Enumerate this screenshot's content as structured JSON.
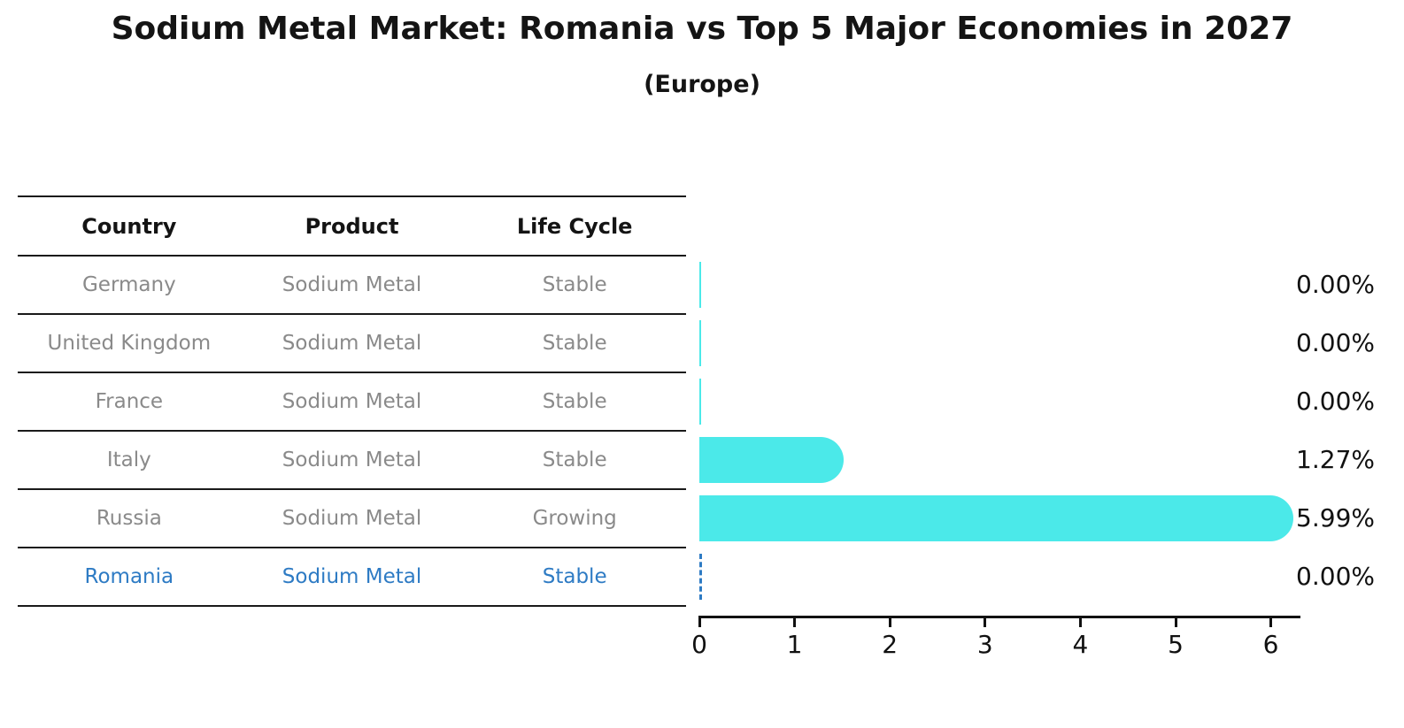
{
  "title": "Sodium Metal Market: Romania vs Top 5 Major Economies in 2027",
  "subtitle": "(Europe)",
  "table": {
    "headers": [
      "Country",
      "Product",
      "Life Cycle"
    ],
    "rows": [
      {
        "country": "Germany",
        "product": "Sodium Metal",
        "life_cycle": "Stable",
        "highlight": false
      },
      {
        "country": "United Kingdom",
        "product": "Sodium Metal",
        "life_cycle": "Stable",
        "highlight": false
      },
      {
        "country": "France",
        "product": "Sodium Metal",
        "life_cycle": "Stable",
        "highlight": false
      },
      {
        "country": "Italy",
        "product": "Sodium Metal",
        "life_cycle": "Stable",
        "highlight": false
      },
      {
        "country": "Russia",
        "product": "Sodium Metal",
        "life_cycle": "Growing",
        "highlight": false
      },
      {
        "country": "Romania",
        "product": "Sodium Metal",
        "life_cycle": "Stable",
        "highlight": true
      }
    ]
  },
  "chart_data": {
    "type": "bar",
    "orientation": "horizontal",
    "title": "Sodium Metal Market: Romania vs Top 5 Major Economies in 2027",
    "subtitle": "(Europe)",
    "categories": [
      "Germany",
      "United Kingdom",
      "France",
      "Italy",
      "Russia",
      "Romania"
    ],
    "values": [
      0.0,
      0.0,
      0.0,
      1.27,
      5.99,
      0.0
    ],
    "value_labels": [
      "0.00%",
      "0.00%",
      "0.00%",
      "1.27%",
      "5.99%",
      "0.00%"
    ],
    "unit": "%",
    "x_ticks": [
      0,
      1,
      2,
      3,
      4,
      5,
      6
    ],
    "xlim": [
      0,
      6.3
    ],
    "grid": false,
    "legend": false,
    "highlight_index": 5,
    "bar_color": "#4be9e9",
    "highlight_color": "#2e7bc4",
    "axis_color": "#111111"
  }
}
